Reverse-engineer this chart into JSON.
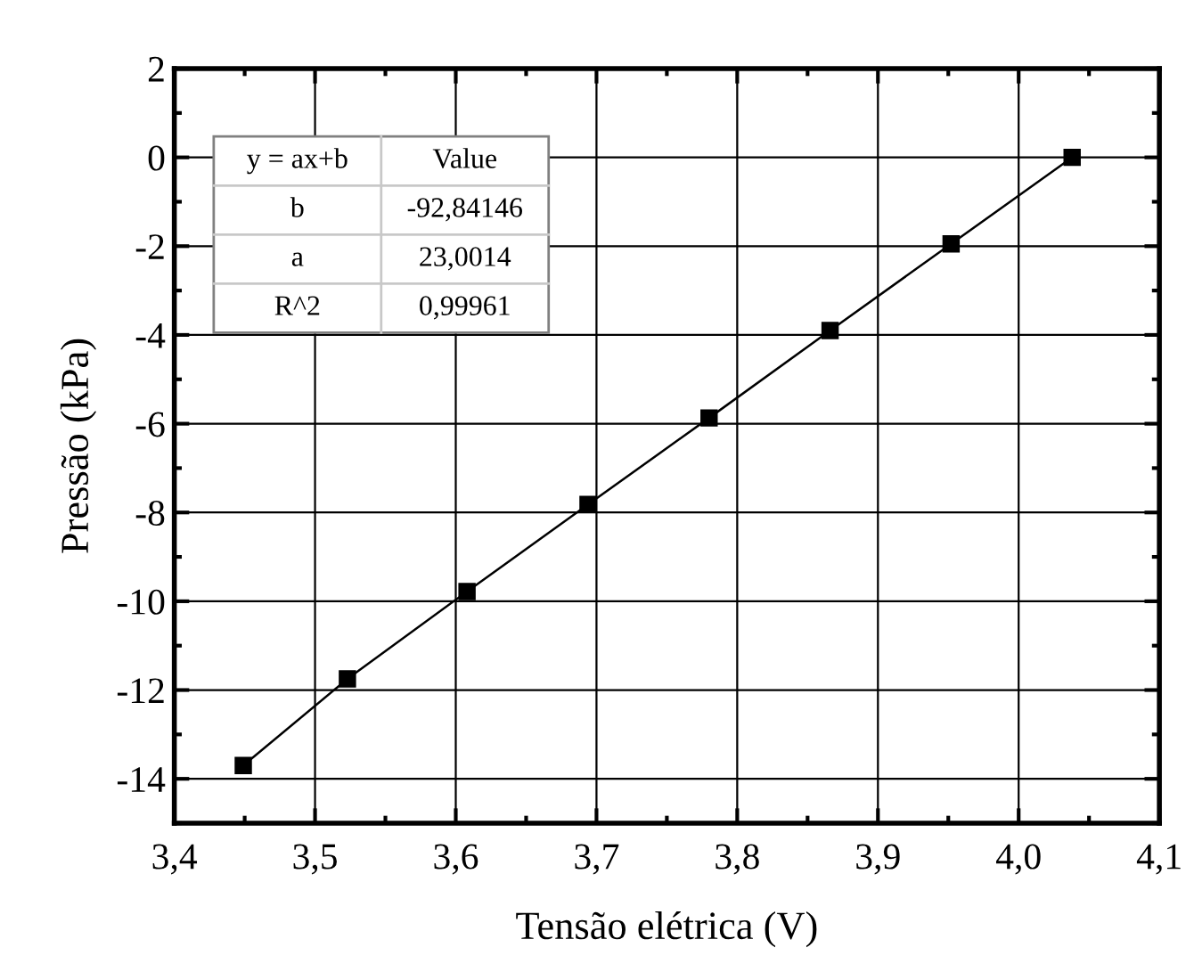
{
  "chart_data": {
    "type": "line",
    "xlabel": "Tensão elétrica (V)",
    "ylabel": "Pressão (kPa)",
    "x": [
      3.449,
      3.523,
      3.608,
      3.694,
      3.78,
      3.866,
      3.952,
      4.038
    ],
    "series": [
      {
        "color": "#000000",
        "values": [
          -13.7,
          -11.75,
          -9.78,
          -7.82,
          -5.87,
          -3.9,
          -1.95,
          0
        ]
      }
    ],
    "marker": "square",
    "line_style": "solid",
    "xlim": [
      3.4,
      4.1
    ],
    "xticks": [
      {
        "value": 3.4,
        "label": "3,4"
      },
      {
        "value": 3.5,
        "label": "3,5"
      },
      {
        "value": 3.6,
        "label": "3,6"
      },
      {
        "value": 3.7,
        "label": "3,7"
      },
      {
        "value": 3.8,
        "label": "3,8"
      },
      {
        "value": 3.9,
        "label": "3,9"
      },
      {
        "value": 4.0,
        "label": "4,0"
      },
      {
        "value": 4.1,
        "label": "4,1"
      }
    ],
    "ylim": [
      -15,
      2
    ],
    "yticks": [
      -14,
      -12,
      -10,
      -8,
      -6,
      -4,
      -2,
      0,
      2
    ],
    "grid": true,
    "annotations": [
      "y = ax+b",
      "Value",
      "b",
      "-92,84146",
      "a",
      "23,0014",
      "R^2",
      "0,99961"
    ]
  }
}
